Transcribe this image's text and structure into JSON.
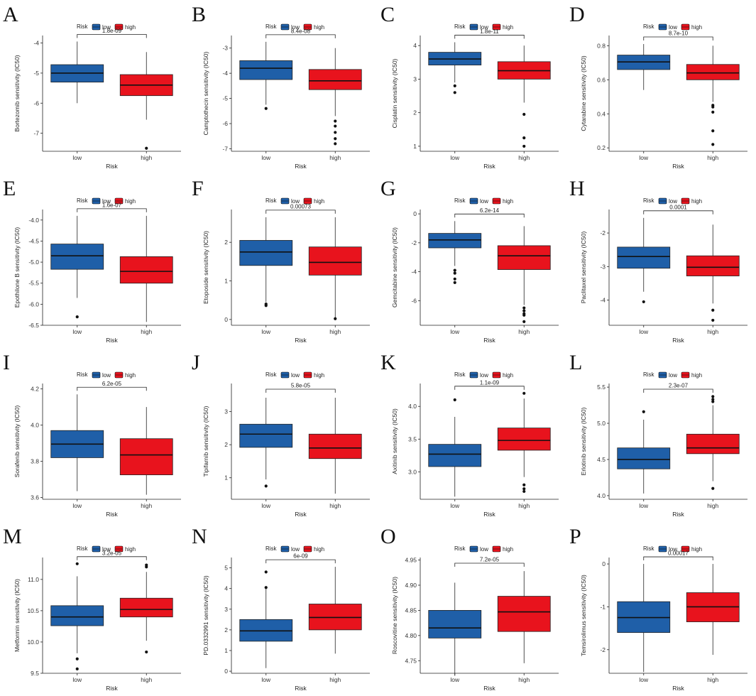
{
  "figure": {
    "legend_title": "Risk",
    "legend_low": "low",
    "legend_high": "high",
    "xlabel": "Risk",
    "colors": {
      "low": "#1f5fa8",
      "high": "#e8131d"
    }
  },
  "chart_data": [
    {
      "letter": "A",
      "type": "box",
      "ylabel": "Bortezomib sensitivity (IC50)",
      "categories": [
        "low",
        "high"
      ],
      "pvalue": "1.8e-09",
      "ylim": [
        -7.6,
        -3.75
      ],
      "yticks": [
        -7,
        -6,
        -5,
        -4
      ],
      "ytick_labels": [
        "-7",
        "-6",
        "-5",
        "-4"
      ],
      "boxes": [
        {
          "name": "low",
          "q1": -5.3,
          "median": -5.0,
          "q3": -4.72,
          "whisker_low": -6.0,
          "whisker_high": -3.95,
          "outliers": []
        },
        {
          "name": "high",
          "q1": -5.75,
          "median": -5.4,
          "q3": -5.05,
          "whisker_low": -6.55,
          "whisker_high": -4.3,
          "outliers": [
            -7.5
          ]
        }
      ]
    },
    {
      "letter": "B",
      "type": "box",
      "ylabel": "Camptothecin sensitivity (IC50)",
      "categories": [
        "low",
        "high"
      ],
      "pvalue": "8.4e-08",
      "ylim": [
        -7.1,
        -2.5
      ],
      "yticks": [
        -7,
        -6,
        -5,
        -4,
        -3
      ],
      "ytick_labels": [
        "-7",
        "-6",
        "-5",
        "-4",
        "-3"
      ],
      "boxes": [
        {
          "name": "low",
          "q1": -4.25,
          "median": -3.8,
          "q3": -3.5,
          "whisker_low": -5.25,
          "whisker_high": -2.75,
          "outliers": [
            -5.4
          ]
        },
        {
          "name": "high",
          "q1": -4.65,
          "median": -4.3,
          "q3": -3.85,
          "whisker_low": -5.7,
          "whisker_high": -3.0,
          "outliers": [
            -5.9,
            -6.1,
            -6.35,
            -6.6,
            -6.8
          ]
        }
      ]
    },
    {
      "letter": "C",
      "type": "box",
      "ylabel": "Cisplatin sensitivity (IC50)",
      "categories": [
        "low",
        "high"
      ],
      "pvalue": "1.8e-11",
      "ylim": [
        0.85,
        4.3
      ],
      "yticks": [
        1,
        2,
        3,
        4
      ],
      "ytick_labels": [
        "1",
        "2",
        "3",
        "4"
      ],
      "boxes": [
        {
          "name": "low",
          "q1": 3.42,
          "median": 3.6,
          "q3": 3.8,
          "whisker_low": 2.9,
          "whisker_high": 4.1,
          "outliers": [
            2.8,
            2.6
          ]
        },
        {
          "name": "high",
          "q1": 3.0,
          "median": 3.25,
          "q3": 3.52,
          "whisker_low": 2.3,
          "whisker_high": 4.0,
          "outliers": [
            1.95,
            1.25,
            1.0
          ]
        }
      ]
    },
    {
      "letter": "D",
      "type": "box",
      "ylabel": "Cytarabine sensitivity (IC50)",
      "categories": [
        "low",
        "high"
      ],
      "pvalue": "8.7e-10",
      "ylim": [
        0.18,
        0.86
      ],
      "yticks": [
        0.2,
        0.4,
        0.6,
        0.8
      ],
      "ytick_labels": [
        "0.2",
        "0.4",
        "0.6",
        "0.8"
      ],
      "boxes": [
        {
          "name": "low",
          "q1": 0.66,
          "median": 0.705,
          "q3": 0.745,
          "whisker_low": 0.54,
          "whisker_high": 0.81,
          "outliers": []
        },
        {
          "name": "high",
          "q1": 0.6,
          "median": 0.64,
          "q3": 0.69,
          "whisker_low": 0.47,
          "whisker_high": 0.8,
          "outliers": [
            0.45,
            0.44,
            0.41,
            0.3,
            0.22
          ]
        }
      ]
    },
    {
      "letter": "E",
      "type": "box",
      "ylabel": "Epothilone B sensitivity (IC50)",
      "categories": [
        "low",
        "high"
      ],
      "pvalue": "1.6e-07",
      "ylim": [
        -6.5,
        -3.75
      ],
      "yticks": [
        -6.5,
        -6.0,
        -5.5,
        -5.0,
        -4.5,
        -4.0
      ],
      "ytick_labels": [
        "-6.5",
        "-6.0",
        "-5.5",
        "-5.0",
        "-4.5",
        "-4.0"
      ],
      "boxes": [
        {
          "name": "low",
          "q1": -5.17,
          "median": -4.85,
          "q3": -4.57,
          "whisker_low": -5.85,
          "whisker_high": -3.9,
          "outliers": [
            -6.3
          ]
        },
        {
          "name": "high",
          "q1": -5.5,
          "median": -5.22,
          "q3": -4.87,
          "whisker_low": -6.42,
          "whisker_high": -3.9,
          "outliers": []
        }
      ]
    },
    {
      "letter": "F",
      "type": "box",
      "ylabel": "Etoposide sensitivity (IC50)",
      "categories": [
        "low",
        "high"
      ],
      "pvalue": "0.00073",
      "ylim": [
        -0.15,
        2.85
      ],
      "yticks": [
        0,
        1,
        2
      ],
      "ytick_labels": [
        "0",
        "1",
        "2"
      ],
      "boxes": [
        {
          "name": "low",
          "q1": 1.4,
          "median": 1.75,
          "q3": 2.05,
          "whisker_low": 0.45,
          "whisker_high": 2.65,
          "outliers": [
            0.4,
            0.36
          ]
        },
        {
          "name": "high",
          "q1": 1.15,
          "median": 1.48,
          "q3": 1.88,
          "whisker_low": 0.05,
          "whisker_high": 2.65,
          "outliers": [
            0.02
          ]
        }
      ]
    },
    {
      "letter": "G",
      "type": "box",
      "ylabel": "Gemcitabine sensitivity (IC50)",
      "categories": [
        "low",
        "high"
      ],
      "pvalue": "6.2e-14",
      "ylim": [
        -7.7,
        0.3
      ],
      "yticks": [
        -6,
        -4,
        -2,
        0
      ],
      "ytick_labels": [
        "-6",
        "-4",
        "-2",
        "0"
      ],
      "boxes": [
        {
          "name": "low",
          "q1": -2.35,
          "median": -1.8,
          "q3": -1.35,
          "whisker_low": -3.6,
          "whisker_high": -0.5,
          "outliers": [
            -3.9,
            -4.1,
            -4.5,
            -4.75
          ]
        },
        {
          "name": "high",
          "q1": -3.85,
          "median": -2.9,
          "q3": -2.2,
          "whisker_low": -6.3,
          "whisker_high": -0.85,
          "outliers": [
            -6.5,
            -6.7,
            -6.9,
            -7.0,
            -7.45
          ]
        }
      ]
    },
    {
      "letter": "H",
      "type": "box",
      "ylabel": "Paclitaxel sensitivity (IC50)",
      "categories": [
        "low",
        "high"
      ],
      "pvalue": "0.0001",
      "ylim": [
        -4.75,
        -1.3
      ],
      "yticks": [
        -4,
        -3,
        -2
      ],
      "ytick_labels": [
        "-4",
        "-3",
        "-2"
      ],
      "boxes": [
        {
          "name": "low",
          "q1": -3.05,
          "median": -2.7,
          "q3": -2.42,
          "whisker_low": -3.75,
          "whisker_high": -1.55,
          "outliers": [
            -4.05
          ]
        },
        {
          "name": "high",
          "q1": -3.28,
          "median": -3.02,
          "q3": -2.68,
          "whisker_low": -4.1,
          "whisker_high": -1.75,
          "outliers": [
            -4.3,
            -4.6
          ]
        }
      ]
    },
    {
      "letter": "I",
      "type": "box",
      "ylabel": "Sorafenib sensitivity (IC50)",
      "categories": [
        "low",
        "high"
      ],
      "pvalue": "6.2e-05",
      "ylim": [
        3.59,
        4.23
      ],
      "yticks": [
        3.6,
        3.8,
        4.0,
        4.2
      ],
      "ytick_labels": [
        "3.6",
        "3.8",
        "4.0",
        "4.2"
      ],
      "boxes": [
        {
          "name": "low",
          "q1": 3.82,
          "median": 3.895,
          "q3": 3.97,
          "whisker_low": 3.635,
          "whisker_high": 4.17,
          "outliers": []
        },
        {
          "name": "high",
          "q1": 3.725,
          "median": 3.835,
          "q3": 3.925,
          "whisker_low": 3.615,
          "whisker_high": 4.1,
          "outliers": []
        }
      ]
    },
    {
      "letter": "J",
      "type": "box",
      "ylabel": "Tipifarnib sensitivity (IC50)",
      "categories": [
        "low",
        "high"
      ],
      "pvalue": "5.8e-05",
      "ylim": [
        0.35,
        3.85
      ],
      "yticks": [
        1,
        2,
        3
      ],
      "ytick_labels": [
        "1",
        "2",
        "3"
      ],
      "boxes": [
        {
          "name": "low",
          "q1": 1.92,
          "median": 2.32,
          "q3": 2.62,
          "whisker_low": 0.95,
          "whisker_high": 3.42,
          "outliers": [
            0.75
          ]
        },
        {
          "name": "high",
          "q1": 1.58,
          "median": 1.9,
          "q3": 2.32,
          "whisker_low": 0.52,
          "whisker_high": 3.42,
          "outliers": []
        }
      ]
    },
    {
      "letter": "K",
      "type": "box",
      "ylabel": "Axitinib sensitivity (IC50)",
      "categories": [
        "low",
        "high"
      ],
      "pvalue": "1.1e-09",
      "ylim": [
        2.58,
        4.35
      ],
      "yticks": [
        3.0,
        3.5,
        4.0
      ],
      "ytick_labels": [
        "3.0",
        "3.5",
        "4.0"
      ],
      "boxes": [
        {
          "name": "low",
          "q1": 3.08,
          "median": 3.27,
          "q3": 3.42,
          "whisker_low": 2.62,
          "whisker_high": 3.84,
          "outliers": [
            4.1
          ]
        },
        {
          "name": "high",
          "q1": 3.33,
          "median": 3.48,
          "q3": 3.67,
          "whisker_low": 2.92,
          "whisker_high": 4.12,
          "outliers": [
            4.2,
            2.8,
            2.74,
            2.7
          ]
        }
      ]
    },
    {
      "letter": "L",
      "type": "box",
      "ylabel": "Erlotinib sensitivity (IC50)",
      "categories": [
        "low",
        "high"
      ],
      "pvalue": "2.3e-07",
      "ylim": [
        3.95,
        5.55
      ],
      "yticks": [
        4.0,
        4.5,
        5.0,
        5.5
      ],
      "ytick_labels": [
        "4.0",
        "4.5",
        "5.0",
        "5.5"
      ],
      "boxes": [
        {
          "name": "low",
          "q1": 4.37,
          "median": 4.5,
          "q3": 4.66,
          "whisker_low": 4.03,
          "whisker_high": 5.05,
          "outliers": [
            5.16
          ]
        },
        {
          "name": "high",
          "q1": 4.58,
          "median": 4.66,
          "q3": 4.85,
          "whisker_low": 4.2,
          "whisker_high": 5.25,
          "outliers": [
            5.3,
            5.33,
            5.37,
            4.1
          ]
        }
      ]
    },
    {
      "letter": "M",
      "type": "box",
      "ylabel": "Metformin sensitivity (IC50)",
      "categories": [
        "low",
        "high"
      ],
      "pvalue": "3.2e-05",
      "ylim": [
        9.5,
        11.35
      ],
      "yticks": [
        9.5,
        10.0,
        10.5,
        11.0
      ],
      "ytick_labels": [
        "9.5",
        "10.0",
        "10.5",
        "11.0"
      ],
      "boxes": [
        {
          "name": "low",
          "q1": 10.26,
          "median": 10.4,
          "q3": 10.58,
          "whisker_low": 9.82,
          "whisker_high": 11.05,
          "outliers": [
            11.25,
            9.73,
            9.57
          ]
        },
        {
          "name": "high",
          "q1": 10.4,
          "median": 10.52,
          "q3": 10.7,
          "whisker_low": 10.02,
          "whisker_high": 11.12,
          "outliers": [
            11.2,
            11.23,
            9.84
          ]
        }
      ]
    },
    {
      "letter": "N",
      "type": "box",
      "ylabel": "PD.0332991 sensitivity (IC50)",
      "categories": [
        "low",
        "high"
      ],
      "pvalue": "6e-09",
      "ylim": [
        -0.1,
        5.5
      ],
      "yticks": [
        0,
        1,
        2,
        3,
        4,
        5
      ],
      "ytick_labels": [
        "0",
        "1",
        "2",
        "3",
        "4",
        "5"
      ],
      "boxes": [
        {
          "name": "low",
          "q1": 1.45,
          "median": 1.95,
          "q3": 2.5,
          "whisker_low": 0.15,
          "whisker_high": 4.0,
          "outliers": [
            4.05,
            4.8
          ]
        },
        {
          "name": "high",
          "q1": 2.0,
          "median": 2.6,
          "q3": 3.25,
          "whisker_low": 0.85,
          "whisker_high": 5.05,
          "outliers": []
        }
      ]
    },
    {
      "letter": "O",
      "type": "box",
      "ylabel": "Roscovitine sensitivity (IC50)",
      "categories": [
        "low",
        "high"
      ],
      "pvalue": "7.2e-05",
      "ylim": [
        4.725,
        4.955
      ],
      "yticks": [
        4.75,
        4.8,
        4.85,
        4.9,
        4.95
      ],
      "ytick_labels": [
        "4.75",
        "4.80",
        "4.85",
        "4.90",
        "4.95"
      ],
      "boxes": [
        {
          "name": "low",
          "q1": 4.795,
          "median": 4.815,
          "q3": 4.85,
          "whisker_low": 4.72,
          "whisker_high": 4.905,
          "outliers": []
        },
        {
          "name": "high",
          "q1": 4.808,
          "median": 4.847,
          "q3": 4.878,
          "whisker_low": 4.745,
          "whisker_high": 4.928,
          "outliers": []
        }
      ]
    },
    {
      "letter": "P",
      "type": "box",
      "ylabel": "Temsirolimus sensitivity (IC50)",
      "categories": [
        "low",
        "high"
      ],
      "pvalue": "0.00017",
      "ylim": [
        -2.55,
        0.15
      ],
      "yticks": [
        -2,
        -1,
        0
      ],
      "ytick_labels": [
        "-2",
        "-1",
        "0"
      ],
      "boxes": [
        {
          "name": "low",
          "q1": -1.6,
          "median": -1.25,
          "q3": -0.88,
          "whisker_low": -2.52,
          "whisker_high": 0.0,
          "outliers": []
        },
        {
          "name": "high",
          "q1": -1.35,
          "median": -1.0,
          "q3": -0.67,
          "whisker_low": -2.12,
          "whisker_high": 0.0,
          "outliers": []
        }
      ]
    }
  ]
}
